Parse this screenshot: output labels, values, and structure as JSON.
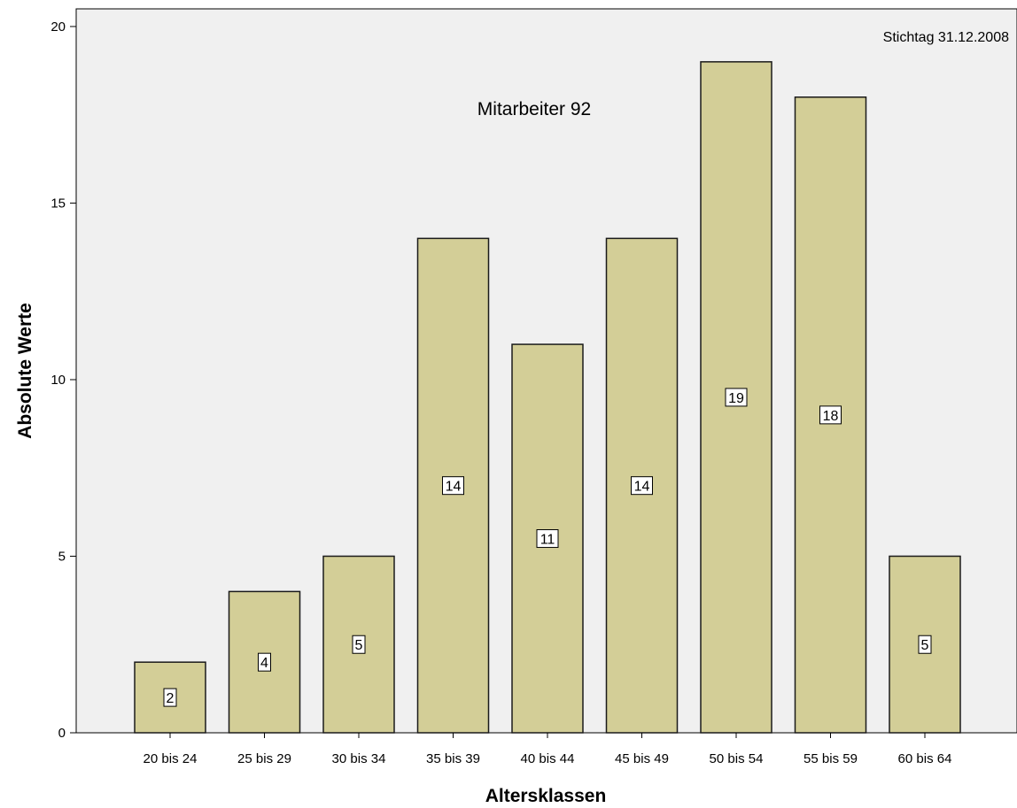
{
  "chart_data": {
    "type": "bar",
    "categories": [
      "20 bis 24",
      "25 bis 29",
      "30 bis 34",
      "35 bis 39",
      "40 bis 44",
      "45 bis 49",
      "50 bis 54",
      "55 bis 59",
      "60 bis 64"
    ],
    "values": [
      2,
      4,
      5,
      14,
      11,
      14,
      19,
      18,
      5
    ],
    "data_labels": [
      "2",
      "4",
      "5",
      "14",
      "11",
      "14",
      "19",
      "18",
      "5"
    ],
    "xlabel": "Altersklassen",
    "ylabel": "Absolute Werte",
    "ylim": [
      0,
      20.5
    ],
    "yticks": [
      0,
      5,
      10,
      15,
      20
    ],
    "ytick_labels": [
      "0",
      "5",
      "10",
      "15",
      "20"
    ],
    "grid": false,
    "annotations": {
      "reference_date": "Stichtag 31.12.2008",
      "employees": "Mitarbeiter 92"
    },
    "colors": {
      "plot_background": "#f0f0f0",
      "bar_fill": "#d3ce97",
      "bar_stroke": "#1a1a1a"
    }
  }
}
